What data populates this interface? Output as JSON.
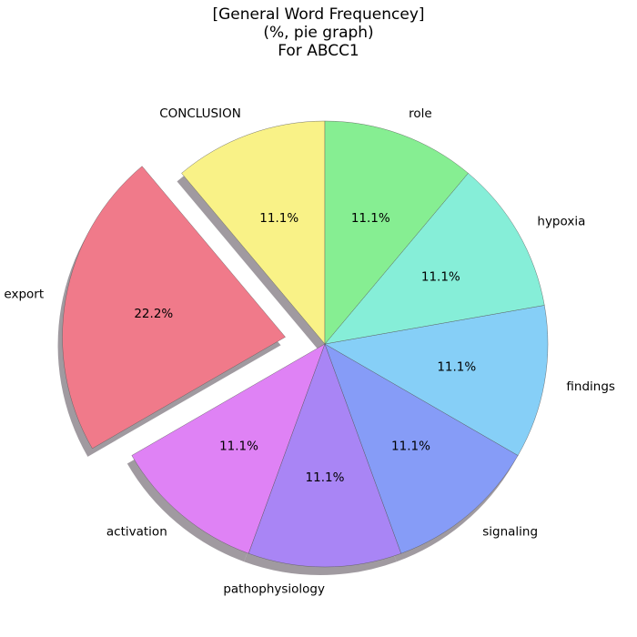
{
  "chart_data": {
    "type": "pie",
    "title_lines": [
      "[General Word Frequencey]",
      "(%, pie graph)",
      "For ABCC1"
    ],
    "slices": [
      {
        "label": "CONCLUSION",
        "value": 11.1,
        "display": "11.1%",
        "color": "#f9f287",
        "explode": false
      },
      {
        "label": "export",
        "value": 22.2,
        "display": "22.2%",
        "color": "#f07a8a",
        "explode": true
      },
      {
        "label": "activation",
        "value": 11.1,
        "display": "11.1%",
        "color": "#df82f5",
        "explode": false
      },
      {
        "label": "pathophysiology",
        "value": 11.1,
        "display": "11.1%",
        "color": "#a985f5",
        "explode": false
      },
      {
        "label": "signaling",
        "value": 11.1,
        "display": "11.1%",
        "color": "#869cf7",
        "explode": false
      },
      {
        "label": "findings",
        "value": 11.1,
        "display": "11.1%",
        "color": "#86cff7",
        "explode": false
      },
      {
        "label": "hypoxia",
        "value": 11.1,
        "display": "11.1%",
        "color": "#86eed8",
        "explode": false
      },
      {
        "label": "role",
        "value": 11.1,
        "display": "11.1%",
        "color": "#86ee92",
        "explode": false
      }
    ],
    "start_angle_deg": 90,
    "direction": "counterclockwise",
    "shadow": true
  }
}
